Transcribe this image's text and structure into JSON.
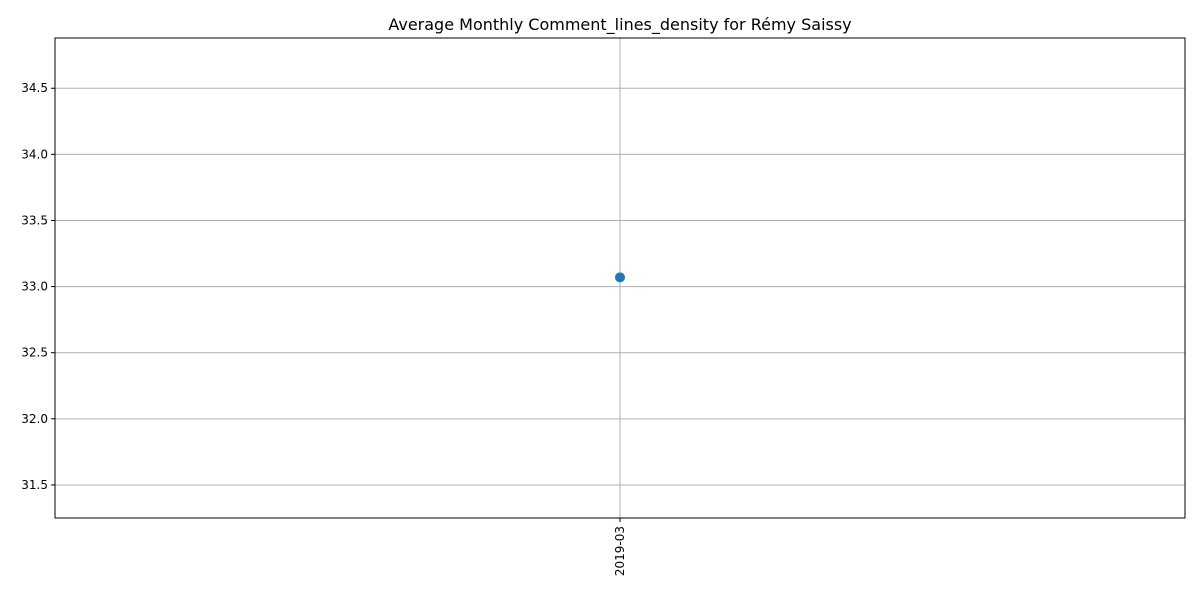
{
  "chart_data": {
    "type": "line",
    "title": "Average Monthly Comment_lines_density for Rémy Saissy",
    "xlabel": "",
    "ylabel": "",
    "categories": [
      "2019-03"
    ],
    "series": [
      {
        "values": [
          33.07
        ],
        "color": "#1f77b4",
        "marker": "circle"
      }
    ],
    "ylim": [
      31.25,
      34.88
    ],
    "yticks": [
      31.5,
      32.0,
      32.5,
      33.0,
      33.5,
      34.0,
      34.5
    ],
    "ytick_labels": [
      "31.5",
      "32.0",
      "32.5",
      "33.0",
      "33.5",
      "34.0",
      "34.5"
    ],
    "grid": true,
    "legend": "none"
  }
}
